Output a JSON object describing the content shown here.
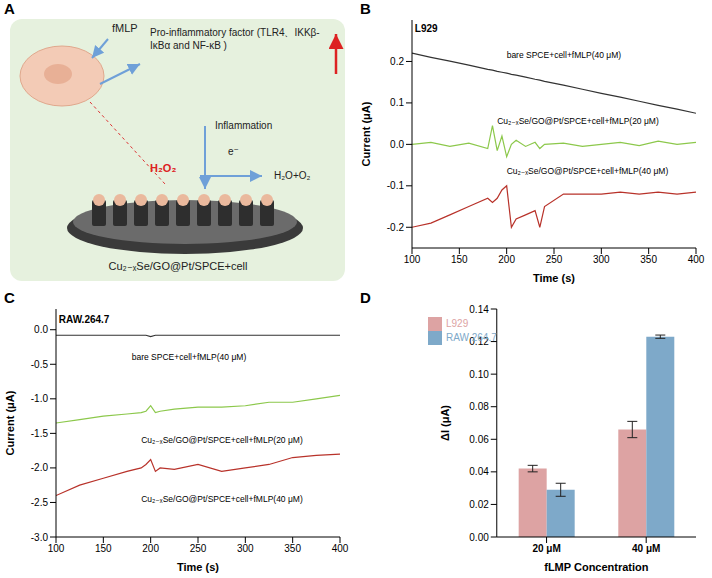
{
  "diagram": {
    "panel": "A",
    "stimulus": "fMLP",
    "factor": "Pro-inflammatory factor (TLR4、IKKβ-IκBα and NF-κB )",
    "process": "Inflammation",
    "electron": "e⁻",
    "reactant": "H₂O₂",
    "product": "H₂O+O₂",
    "electrode": "Cu₂₋ₓSe/GO@Pt/SPCE+cell"
  },
  "chart_data": [
    {
      "type": "line",
      "panel": "B",
      "annotation": "L929",
      "x_label": "Time (s)",
      "y_label": "Current (μA)",
      "x": [
        100,
        120,
        140,
        160,
        180,
        185,
        190,
        195,
        200,
        205,
        210,
        220,
        230,
        235,
        240,
        260,
        280,
        300,
        320,
        340,
        360,
        380,
        400
      ],
      "series": [
        {
          "name": "bare SPCE+cell+fMLP(40 μM)",
          "color": "#333333",
          "values": [
            0.22,
            0.21,
            0.201,
            0.191,
            0.181,
            0.179,
            0.176,
            0.174,
            0.172,
            0.169,
            0.167,
            0.162,
            0.157,
            0.155,
            0.152,
            0.143,
            0.133,
            0.123,
            0.114,
            0.104,
            0.094,
            0.085,
            0.075
          ]
        },
        {
          "name": "Cu₂₋ₓSe/GO@Pt/SPCE+cell+fMLP(20 μM)",
          "color": "#8cc84b",
          "values": [
            0.0,
            0.005,
            -0.005,
            0.003,
            -0.01,
            0.045,
            -0.015,
            0.02,
            -0.03,
            0.0,
            0.01,
            -0.005,
            0.005,
            -0.01,
            0.0,
            0.003,
            -0.005,
            0.0,
            0.005,
            -0.003,
            0.008,
            0.0,
            0.005
          ]
        },
        {
          "name": "Cu₂₋ₓSe/GO@Pt/SPCE+cell+fMLP(40 μM)",
          "color": "#b8322a",
          "values": [
            -0.2,
            -0.19,
            -0.17,
            -0.15,
            -0.13,
            -0.14,
            -0.13,
            -0.11,
            -0.1,
            -0.2,
            -0.18,
            -0.17,
            -0.16,
            -0.2,
            -0.15,
            -0.12,
            -0.12,
            -0.12,
            -0.115,
            -0.12,
            -0.115,
            -0.12,
            -0.115
          ]
        }
      ],
      "xlim": [
        100,
        400
      ],
      "xticks": [
        100,
        150,
        200,
        250,
        300,
        350,
        400
      ],
      "ylim": [
        -0.25,
        0.3
      ],
      "yticks": [
        -0.2,
        -0.1,
        {
          "value": 0,
          "label": "0.0"
        },
        0.1,
        0.2
      ]
    },
    {
      "type": "line",
      "panel": "C",
      "annotation": "RAW.264.7",
      "x_label": "Time (s)",
      "y_label": "Current (μA)",
      "x": [
        100,
        125,
        150,
        175,
        190,
        195,
        200,
        205,
        210,
        225,
        250,
        275,
        300,
        325,
        350,
        375,
        400
      ],
      "series": [
        {
          "name": "bare SPCE+cell+fMLP(40 μM)",
          "color": "#333333",
          "values": [
            -0.08,
            -0.08,
            -0.08,
            -0.08,
            -0.08,
            -0.08,
            -0.1,
            -0.08,
            -0.08,
            -0.08,
            -0.08,
            -0.08,
            -0.08,
            -0.08,
            -0.08,
            -0.08,
            -0.08
          ]
        },
        {
          "name": "Cu₂₋ₓSe/GO@Pt/SPCE+cell+fMLP(20 μM)",
          "color": "#8cc84b",
          "values": [
            -1.35,
            -1.3,
            -1.25,
            -1.22,
            -1.2,
            -1.18,
            -1.1,
            -1.2,
            -1.18,
            -1.15,
            -1.12,
            -1.12,
            -1.1,
            -1.05,
            -1.05,
            -1.0,
            -0.95
          ]
        },
        {
          "name": "Cu₂₋ₓSe/GO@Pt/SPCE+cell+fMLP(40 μM)",
          "color": "#b8322a",
          "values": [
            -2.4,
            -2.25,
            -2.15,
            -2.05,
            -2.0,
            -1.95,
            -1.88,
            -2.05,
            -2.0,
            -2.02,
            -1.95,
            -2.05,
            -2.0,
            -1.95,
            -1.85,
            -1.82,
            -1.8
          ]
        }
      ],
      "xlim": [
        100,
        400
      ],
      "xticks": [
        100,
        150,
        200,
        250,
        300,
        350,
        400
      ],
      "ylim": [
        -3,
        0.3
      ],
      "yticks": [
        {
          "value": -3,
          "label": "-3.0"
        },
        -2.5,
        {
          "value": -2,
          "label": "-2.0"
        },
        -1.5,
        {
          "value": -1,
          "label": "-1.0"
        },
        -0.5,
        {
          "value": 0,
          "label": "0.0"
        }
      ]
    },
    {
      "type": "bar",
      "panel": "D",
      "x_label": "fLMP Concentration",
      "y_label": "ΔI (μA)",
      "categories": [
        "20 μM",
        "40 μM"
      ],
      "series": [
        {
          "name": "L929",
          "color": "#dda3a3",
          "values": [
            0.042,
            0.066
          ],
          "errors": [
            0.002,
            0.005
          ]
        },
        {
          "name": "RAW 264.7",
          "color": "#7ea9c9",
          "values": [
            0.029,
            0.123
          ],
          "errors": [
            0.004,
            0.001
          ]
        }
      ],
      "ylim": [
        0,
        0.14
      ],
      "yticks": [
        {
          "value": 0,
          "label": "0.00"
        },
        {
          "value": 0.02,
          "label": "0.02"
        },
        {
          "value": 0.04,
          "label": "0.04"
        },
        {
          "value": 0.06,
          "label": "0.06"
        },
        {
          "value": 0.08,
          "label": "0.08"
        },
        {
          "value": 0.1,
          "label": "0.10"
        },
        {
          "value": 0.12,
          "label": "0.12"
        },
        {
          "value": 0.14,
          "label": "0.14"
        }
      ],
      "legend": "upper left"
    }
  ]
}
